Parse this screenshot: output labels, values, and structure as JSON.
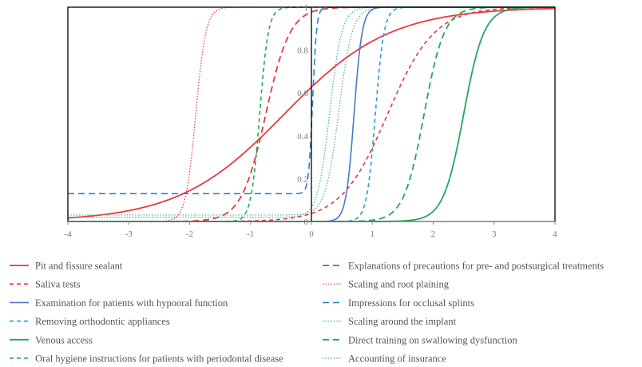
{
  "chart_data": {
    "type": "line",
    "title": "",
    "xlabel": "",
    "ylabel": "",
    "xlim": [
      -4,
      4
    ],
    "ylim": [
      0,
      1
    ],
    "grid": false,
    "legend_position": "bottom",
    "x_ticks": [
      "-4",
      "-3",
      "-2",
      "-1",
      "0",
      "1",
      "2",
      "3",
      "4"
    ],
    "y_ticks": [
      "0",
      "0.2",
      "0.4",
      "0.6",
      "0.8",
      "1"
    ],
    "series": [
      {
        "name": "Pit and fissure sealant",
        "color": "#e8383d",
        "style": "solid",
        "width": 1.8,
        "curve": {
          "a": 1.15,
          "b": -0.45,
          "c": 0.0
        }
      },
      {
        "name": "Explanations of precautions for pre- and postsurgical treatments",
        "color": "#e8383d",
        "style": "dash",
        "width": 1.8,
        "curve": {
          "a": 5.0,
          "b": -0.75,
          "c": 0.0
        }
      },
      {
        "name": "Saliva tests",
        "color": "#e8383d",
        "style": "shortdash",
        "width": 1.6,
        "curve": {
          "a": 2.6,
          "b": 1.25,
          "c": 0.0
        }
      },
      {
        "name": "Scaling and root plaining",
        "color": "#e8383d",
        "style": "dot",
        "width": 1.2,
        "curve": {
          "a": 12.0,
          "b": -1.9,
          "c": 0.0
        }
      },
      {
        "name": "Examination for patients with hypooral function",
        "color": "#4a78c8",
        "style": "solid",
        "width": 1.6,
        "curve": {
          "a": 15.0,
          "b": 0.7,
          "c": 0.0
        }
      },
      {
        "name": "Impressions for occlusal splints",
        "color": "#1f86c8",
        "style": "dash",
        "width": 1.6,
        "curve": {
          "a": 30.0,
          "b": 0.02,
          "c": 0.13
        }
      },
      {
        "name": "Removing orthodontic appliances",
        "color": "#1f9fd8",
        "style": "shortdash",
        "width": 1.6,
        "curve": {
          "a": 14.0,
          "b": 1.05,
          "c": 0.0
        }
      },
      {
        "name": "Scaling around the implant",
        "color": "#2ab0c8",
        "style": "dot",
        "width": 1.2,
        "curve": {
          "a": 10.0,
          "b": 0.3,
          "c": 0.02
        }
      },
      {
        "name": "Venous access",
        "color": "#1faa5c",
        "style": "solid",
        "width": 1.8,
        "curve": {
          "a": 6.0,
          "b": 2.5,
          "c": 0.0
        }
      },
      {
        "name": "Direct training on swallowing dysfunction",
        "color": "#1faa5c",
        "style": "dash",
        "width": 1.8,
        "curve": {
          "a": 6.0,
          "b": 1.85,
          "c": 0.0
        }
      },
      {
        "name": "Oral hygiene instructions for patients with periodontal disease",
        "color": "#1faa5c",
        "style": "shortdash",
        "width": 1.6,
        "curve": {
          "a": 14.0,
          "b": -0.85,
          "c": 0.0
        }
      },
      {
        "name": "Accounting of insurance",
        "color": "#4bb87a",
        "style": "dot",
        "width": 1.2,
        "curve": {
          "a": 9.0,
          "b": 0.45,
          "c": 0.03
        }
      }
    ]
  }
}
